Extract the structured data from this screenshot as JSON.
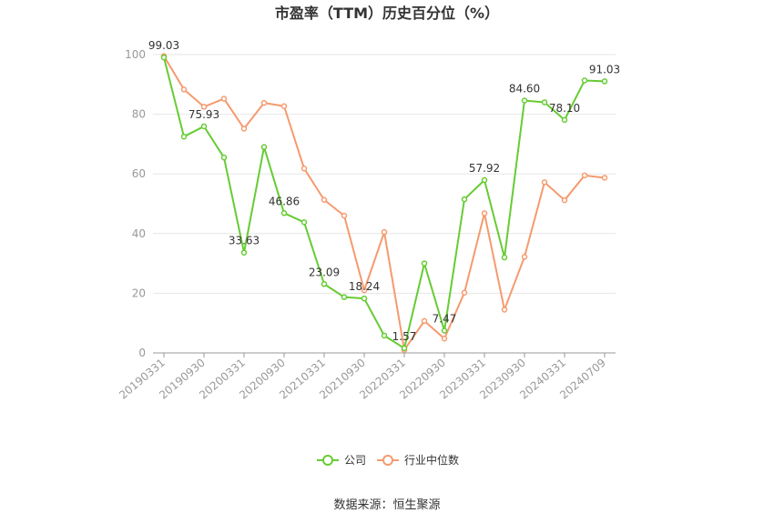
{
  "chart_data": {
    "type": "line",
    "title": "市盈率（TTM）历史百分位（%）",
    "source": "数据来源：恒生聚源",
    "ylim": [
      0,
      100
    ],
    "yticks": [
      0,
      20,
      40,
      60,
      80,
      100
    ],
    "grid": true,
    "legend_position": "bottom",
    "x": [
      "20190331",
      "20190630",
      "20190930",
      "20191231",
      "20200331",
      "20200630",
      "20200930",
      "20201231",
      "20210331",
      "20210630",
      "20210930",
      "20211231",
      "20220331",
      "20220630",
      "20220930",
      "20221231",
      "20230331",
      "20230630",
      "20230930",
      "20231231",
      "20240331",
      "20240630",
      "20240709"
    ],
    "x_tick_labels": [
      "20190331",
      "20190930",
      "20200331",
      "20200930",
      "20210331",
      "20210930",
      "20220331",
      "20220930",
      "20230331",
      "20230930",
      "20240331",
      "20240709"
    ],
    "series": [
      {
        "name": "公司",
        "color": "#66cc33",
        "values": [
          99.03,
          72.5,
          75.93,
          65.5,
          33.63,
          69.0,
          46.86,
          43.8,
          23.09,
          18.7,
          18.24,
          5.8,
          1.57,
          30.0,
          7.47,
          51.5,
          57.92,
          32.0,
          84.6,
          84.0,
          78.1,
          91.3,
          91.03
        ],
        "labels": {
          "0": "99.03",
          "2": "75.93",
          "4": "33.63",
          "6": "46.86",
          "8": "23.09",
          "10": "18.24",
          "12": "1.57",
          "14": "7.47",
          "16": "57.92",
          "18": "84.60",
          "20": "78.10",
          "22": "91.03"
        }
      },
      {
        "name": "行业中位数",
        "color": "#f59a6e",
        "values": [
          99.5,
          88.3,
          82.5,
          85.2,
          75.2,
          83.8,
          82.7,
          61.8,
          51.3,
          46.0,
          21.0,
          40.5,
          1.0,
          10.7,
          4.8,
          20.2,
          46.8,
          14.5,
          32.2,
          57.2,
          51.2,
          59.5,
          58.7
        ]
      }
    ]
  }
}
